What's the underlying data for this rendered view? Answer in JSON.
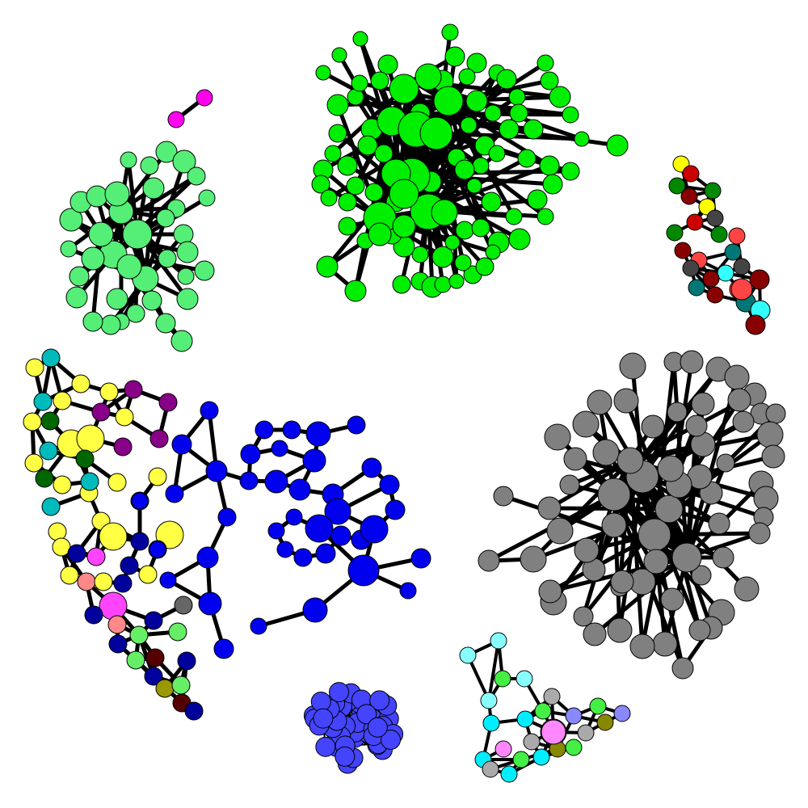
{
  "diagram": {
    "type": "network-graph",
    "edge_color": "#000000",
    "node_border_color": "#000000",
    "background": "#ffffff",
    "clusters": [
      {
        "id": "green-large",
        "color": "#00ee00",
        "shape": "dense-hub"
      },
      {
        "id": "light-green",
        "color": "#55ee77",
        "shape": "dense-hub"
      },
      {
        "id": "magenta-pair",
        "color": "#ff00ee",
        "shape": "pair"
      },
      {
        "id": "multicolor-strip",
        "colors": [
          "#ffff00",
          "#cc0000",
          "#008800",
          "#ff4444",
          "#444444",
          "#007777",
          "#33ffff",
          "#880000"
        ],
        "shape": "chain"
      },
      {
        "id": "mixed-left",
        "colors": [
          "#ffff44",
          "#00bbbb",
          "#880088",
          "#006600",
          "#00009c",
          "#ff44ff",
          "#ff8888",
          "#66ee66"
        ],
        "shape": "chain"
      },
      {
        "id": "blue",
        "color": "#0000ee",
        "shape": "tree"
      },
      {
        "id": "gray",
        "color": "#808080",
        "shape": "dense-hub"
      },
      {
        "id": "periwinkle-ball",
        "color": "#4444ff",
        "shape": "clique"
      },
      {
        "id": "cyan-small",
        "colors": [
          "#88ffff",
          "#00eeff",
          "#44ee44",
          "#aaaaaa",
          "#8888ff",
          "#ff88ff",
          "#888800"
        ],
        "shape": "chain"
      }
    ]
  }
}
